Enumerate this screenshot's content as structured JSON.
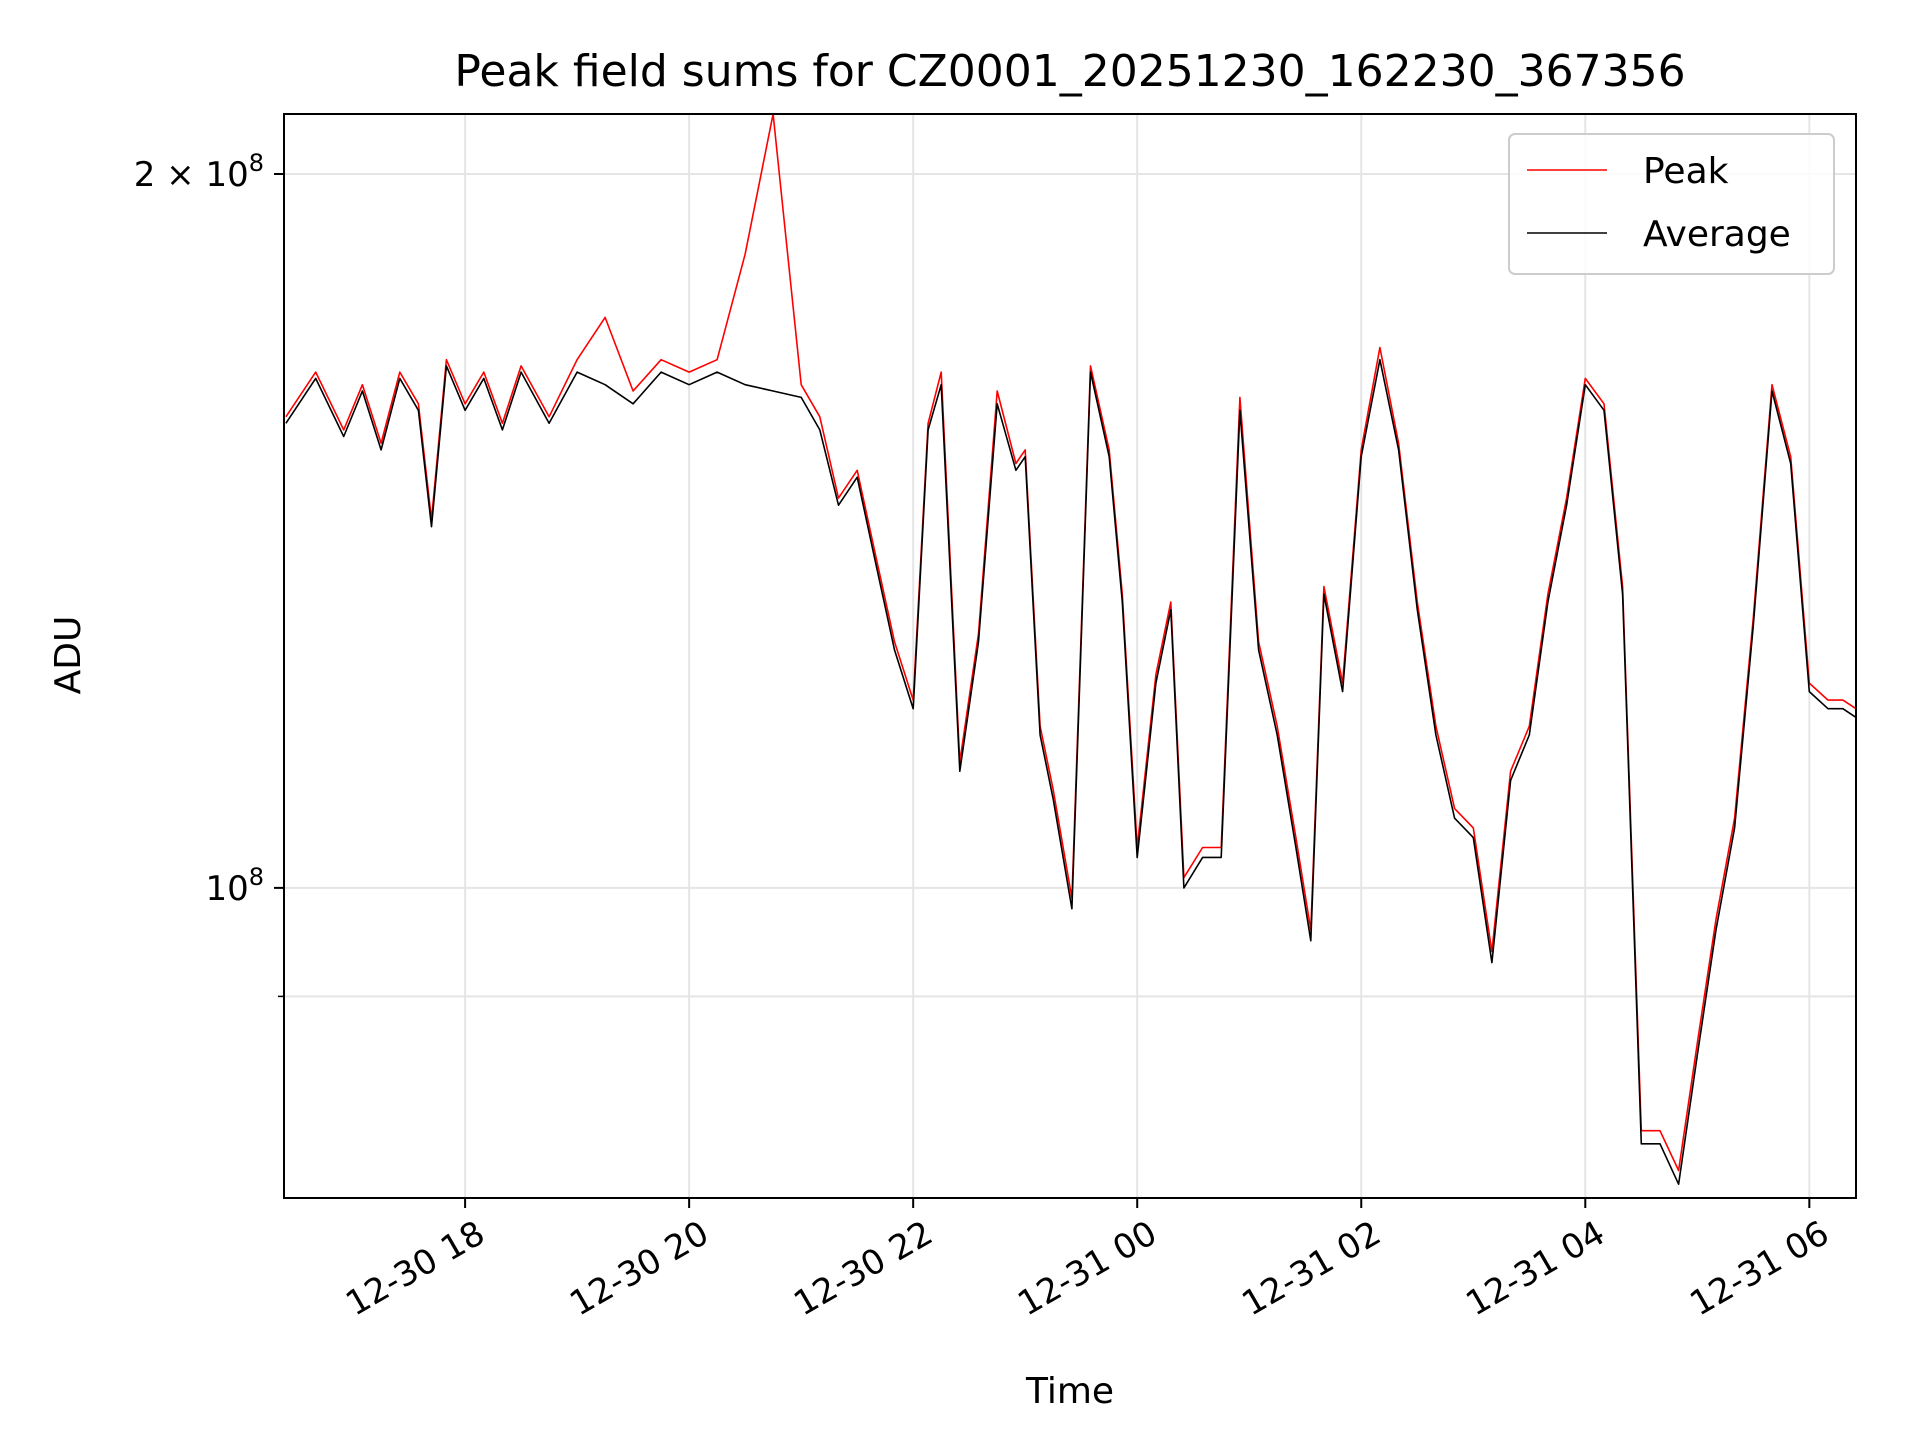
{
  "chart_data": {
    "type": "line",
    "title": "Peak field sums for CZ0001_20251230_162230_367356",
    "xlabel": "Time",
    "ylabel": "ADU",
    "y_scale": "log",
    "ylim": [
      74000000,
      212000000
    ],
    "xlim": [
      "2025-12-30 16:23",
      "2025-12-31 06:25"
    ],
    "x_ticks": [
      {
        "value": "2025-12-30 18:00",
        "label": "12-30 18"
      },
      {
        "value": "2025-12-30 20:00",
        "label": "12-30 20"
      },
      {
        "value": "2025-12-30 22:00",
        "label": "12-30 22"
      },
      {
        "value": "2025-12-31 00:00",
        "label": "12-31 00"
      },
      {
        "value": "2025-12-31 02:00",
        "label": "12-31 02"
      },
      {
        "value": "2025-12-31 04:00",
        "label": "12-31 04"
      },
      {
        "value": "2025-12-31 06:00",
        "label": "12-31 06"
      }
    ],
    "y_ticks": [
      {
        "value": 200000000,
        "base": "2 × 10",
        "exp": "8"
      },
      {
        "value": 100000000,
        "base": "10",
        "exp": "8"
      }
    ],
    "y_minor_grid": [
      90000000
    ],
    "grid": true,
    "legend": "top-right",
    "colors": {
      "peak": "#ff0000",
      "average": "#000000",
      "grid": "#e5e5e5"
    },
    "series": [
      {
        "name": "Peak",
        "x": [
          "2025-12-30 16:24",
          "2025-12-30 16:40",
          "2025-12-30 16:55",
          "2025-12-30 17:05",
          "2025-12-30 17:15",
          "2025-12-30 17:25",
          "2025-12-30 17:35",
          "2025-12-30 17:42",
          "2025-12-30 17:50",
          "2025-12-30 18:00",
          "2025-12-30 18:10",
          "2025-12-30 18:20",
          "2025-12-30 18:30",
          "2025-12-30 18:45",
          "2025-12-30 19:00",
          "2025-12-30 19:15",
          "2025-12-30 19:30",
          "2025-12-30 19:45",
          "2025-12-30 20:00",
          "2025-12-30 20:15",
          "2025-12-30 20:30",
          "2025-12-30 20:45",
          "2025-12-30 21:00",
          "2025-12-30 21:10",
          "2025-12-30 21:20",
          "2025-12-30 21:30",
          "2025-12-30 21:40",
          "2025-12-30 21:50",
          "2025-12-30 22:00",
          "2025-12-30 22:08",
          "2025-12-30 22:15",
          "2025-12-30 22:25",
          "2025-12-30 22:35",
          "2025-12-30 22:45",
          "2025-12-30 22:55",
          "2025-12-30 23:00",
          "2025-12-30 23:08",
          "2025-12-30 23:15",
          "2025-12-30 23:25",
          "2025-12-30 23:35",
          "2025-12-30 23:45",
          "2025-12-30 23:52",
          "2025-12-31 00:00",
          "2025-12-31 00:10",
          "2025-12-31 00:18",
          "2025-12-31 00:25",
          "2025-12-31 00:35",
          "2025-12-31 00:45",
          "2025-12-31 00:55",
          "2025-12-31 01:05",
          "2025-12-31 01:15",
          "2025-12-31 01:25",
          "2025-12-31 01:33",
          "2025-12-31 01:40",
          "2025-12-31 01:50",
          "2025-12-31 02:00",
          "2025-12-31 02:10",
          "2025-12-31 02:20",
          "2025-12-31 02:30",
          "2025-12-31 02:40",
          "2025-12-31 02:50",
          "2025-12-31 03:00",
          "2025-12-31 03:10",
          "2025-12-31 03:20",
          "2025-12-31 03:30",
          "2025-12-31 03:40",
          "2025-12-31 03:50",
          "2025-12-31 04:00",
          "2025-12-31 04:10",
          "2025-12-31 04:20",
          "2025-12-31 04:30",
          "2025-12-31 04:40",
          "2025-12-31 04:50",
          "2025-12-31 05:00",
          "2025-12-31 05:10",
          "2025-12-31 05:20",
          "2025-12-31 05:30",
          "2025-12-31 05:40",
          "2025-12-31 05:50",
          "2025-12-31 06:00",
          "2025-12-31 06:10",
          "2025-12-31 06:18",
          "2025-12-31 06:25"
        ],
        "y": [
          158000000,
          165000000,
          156000000,
          163000000,
          154000000,
          165000000,
          160000000,
          143000000,
          167000000,
          160000000,
          165000000,
          157000000,
          166000000,
          158000000,
          167000000,
          174000000,
          162000000,
          167000000,
          165000000,
          167000000,
          185000000,
          212000000,
          163000000,
          158000000,
          146000000,
          150000000,
          138000000,
          127000000,
          120000000,
          157000000,
          165000000,
          113000000,
          128000000,
          162000000,
          151000000,
          153000000,
          117000000,
          110000000,
          99000000,
          166000000,
          153000000,
          133000000,
          104000000,
          123000000,
          132000000,
          101000000,
          104000000,
          104000000,
          161000000,
          127000000,
          117000000,
          105000000,
          96000000,
          134000000,
          122000000,
          153000000,
          169000000,
          154000000,
          132000000,
          117000000,
          108000000,
          106000000,
          94000000,
          112000000,
          117000000,
          133000000,
          146000000,
          164000000,
          160000000,
          134000000,
          79000000,
          79000000,
          76000000,
          86000000,
          97000000,
          107000000,
          130000000,
          163000000,
          152000000,
          122000000,
          120000000,
          120000000,
          119000000
        ]
      },
      {
        "name": "Average",
        "x": [
          "2025-12-30 16:24",
          "2025-12-30 16:40",
          "2025-12-30 16:55",
          "2025-12-30 17:05",
          "2025-12-30 17:15",
          "2025-12-30 17:25",
          "2025-12-30 17:35",
          "2025-12-30 17:42",
          "2025-12-30 17:50",
          "2025-12-30 18:00",
          "2025-12-30 18:10",
          "2025-12-30 18:20",
          "2025-12-30 18:30",
          "2025-12-30 18:45",
          "2025-12-30 19:00",
          "2025-12-30 19:15",
          "2025-12-30 19:30",
          "2025-12-30 19:45",
          "2025-12-30 20:00",
          "2025-12-30 20:15",
          "2025-12-30 20:30",
          "2025-12-30 20:45",
          "2025-12-30 21:00",
          "2025-12-30 21:10",
          "2025-12-30 21:20",
          "2025-12-30 21:30",
          "2025-12-30 21:40",
          "2025-12-30 21:50",
          "2025-12-30 22:00",
          "2025-12-30 22:08",
          "2025-12-30 22:15",
          "2025-12-30 22:25",
          "2025-12-30 22:35",
          "2025-12-30 22:45",
          "2025-12-30 22:55",
          "2025-12-30 23:00",
          "2025-12-30 23:08",
          "2025-12-30 23:15",
          "2025-12-30 23:25",
          "2025-12-30 23:35",
          "2025-12-30 23:45",
          "2025-12-30 23:52",
          "2025-12-31 00:00",
          "2025-12-31 00:10",
          "2025-12-31 00:18",
          "2025-12-31 00:25",
          "2025-12-31 00:35",
          "2025-12-31 00:45",
          "2025-12-31 00:55",
          "2025-12-31 01:05",
          "2025-12-31 01:15",
          "2025-12-31 01:25",
          "2025-12-31 01:33",
          "2025-12-31 01:40",
          "2025-12-31 01:50",
          "2025-12-31 02:00",
          "2025-12-31 02:10",
          "2025-12-31 02:20",
          "2025-12-31 02:30",
          "2025-12-31 02:40",
          "2025-12-31 02:50",
          "2025-12-31 03:00",
          "2025-12-31 03:10",
          "2025-12-31 03:20",
          "2025-12-31 03:30",
          "2025-12-31 03:40",
          "2025-12-31 03:50",
          "2025-12-31 04:00",
          "2025-12-31 04:10",
          "2025-12-31 04:20",
          "2025-12-31 04:30",
          "2025-12-31 04:40",
          "2025-12-31 04:50",
          "2025-12-31 05:00",
          "2025-12-31 05:10",
          "2025-12-31 05:20",
          "2025-12-31 05:30",
          "2025-12-31 05:40",
          "2025-12-31 05:50",
          "2025-12-31 06:00",
          "2025-12-31 06:10",
          "2025-12-31 06:18",
          "2025-12-31 06:25"
        ],
        "y": [
          157000000,
          164000000,
          155000000,
          162000000,
          153000000,
          164000000,
          159000000,
          142000000,
          166000000,
          159000000,
          164000000,
          156000000,
          165000000,
          157000000,
          165000000,
          163000000,
          160000000,
          165000000,
          163000000,
          165000000,
          163000000,
          162000000,
          161000000,
          156000000,
          145000000,
          149000000,
          137000000,
          126000000,
          119000000,
          156000000,
          163000000,
          112000000,
          127000000,
          160000000,
          150000000,
          152000000,
          116000000,
          109000000,
          98000000,
          165000000,
          152000000,
          132000000,
          103000000,
          122000000,
          131000000,
          100000000,
          103000000,
          103000000,
          159000000,
          126000000,
          116000000,
          104000000,
          95000000,
          133000000,
          121000000,
          152000000,
          167000000,
          153000000,
          131000000,
          116000000,
          107000000,
          105000000,
          93000000,
          111000000,
          116000000,
          132000000,
          145000000,
          163000000,
          159000000,
          133000000,
          78000000,
          78000000,
          75000000,
          85000000,
          96000000,
          106000000,
          129000000,
          162000000,
          151000000,
          121000000,
          119000000,
          119000000,
          118000000
        ]
      }
    ]
  }
}
